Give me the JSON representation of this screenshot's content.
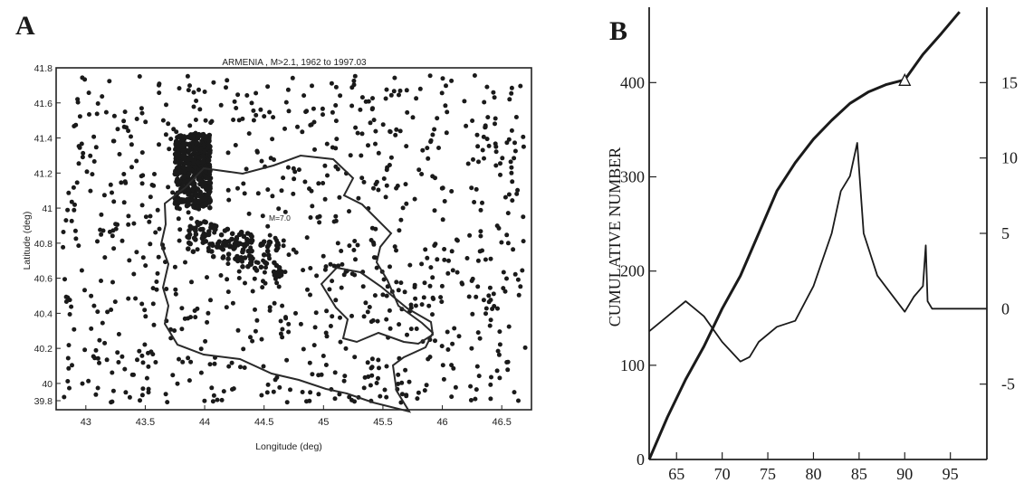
{
  "panels": {
    "a": {
      "label": "A",
      "title": "ARMENIA , M>2.1, 1962 to 1997.03",
      "xlabel": "Longitude (deg)",
      "ylabel": "Latitude (deg)",
      "annotation": "M=7.0"
    },
    "b": {
      "label": "B",
      "ylabel_left": "CUMULATIVE NUMBER"
    }
  },
  "chart_data": [
    {
      "type": "scatter",
      "title": "ARMENIA , M>2.1, 1962 to 1997.03",
      "xlabel": "Longitude (deg)",
      "ylabel": "Latitude (deg)",
      "xlim": [
        42.75,
        46.75
      ],
      "ylim": [
        39.85,
        41.8
      ],
      "x_ticks": [
        "43",
        "43.5",
        "44",
        "44.5",
        "45",
        "45.5",
        "46",
        "46.5"
      ],
      "y_ticks": [
        "39.8",
        "40",
        "40.2",
        "40.4",
        "40.6",
        "40.8",
        "41",
        "41.2",
        "41.4",
        "41.6",
        "41.8"
      ],
      "annotation": {
        "text": "M=7.0",
        "x": 44.55,
        "y": 40.85
      },
      "clusters": [
        {
          "name": "dense cluster",
          "lon": [
            43.75,
            44.05
          ],
          "lat": [
            41.0,
            41.42
          ]
        },
        {
          "name": "rupture zone",
          "lon": [
            43.85,
            44.65
          ],
          "lat": [
            40.75,
            40.95
          ]
        }
      ],
      "border_color": "#2a2a2a",
      "point_color": "#1a1a1a"
    },
    {
      "type": "line",
      "title": "",
      "xlabel": "",
      "xlim": [
        62,
        99
      ],
      "x_ticks": [
        "65",
        "70",
        "75",
        "80",
        "85",
        "90",
        "95"
      ],
      "left_axis": {
        "ylim": [
          0,
          480
        ],
        "ticks": [
          "0",
          "100",
          "200",
          "300",
          "400"
        ]
      },
      "right_axis": {
        "ylim": [
          -10,
          20
        ],
        "ticks": [
          "-5",
          "0",
          "5",
          "10",
          "15"
        ]
      },
      "marker": {
        "symbol": "triangle",
        "x": 90,
        "y": 400
      },
      "series": [
        {
          "axis": "left",
          "x": [
            62,
            64,
            66,
            68,
            70,
            72,
            74,
            76,
            78,
            80,
            82,
            84,
            86,
            88,
            90,
            92,
            94,
            96
          ],
          "y": [
            0,
            45,
            85,
            120,
            160,
            195,
            240,
            285,
            315,
            340,
            360,
            378,
            390,
            398,
            403,
            430,
            452,
            475
          ]
        },
        {
          "axis": "right",
          "x": [
            62,
            64,
            66,
            67,
            68,
            70,
            72,
            73,
            74,
            76,
            78,
            80,
            82,
            83,
            84,
            84.8,
            85.5,
            87,
            88.5,
            90,
            91,
            92,
            92.3,
            92.5,
            93,
            99
          ],
          "y": [
            -1.5,
            -0.5,
            0.5,
            0,
            -0.5,
            -2.2,
            -3.5,
            -3.2,
            -2.2,
            -1.2,
            -0.8,
            1.5,
            5,
            7.8,
            8.8,
            11,
            5,
            2.2,
            1,
            -0.2,
            0.8,
            1.5,
            4.2,
            0.5,
            0,
            0
          ]
        }
      ]
    }
  ]
}
